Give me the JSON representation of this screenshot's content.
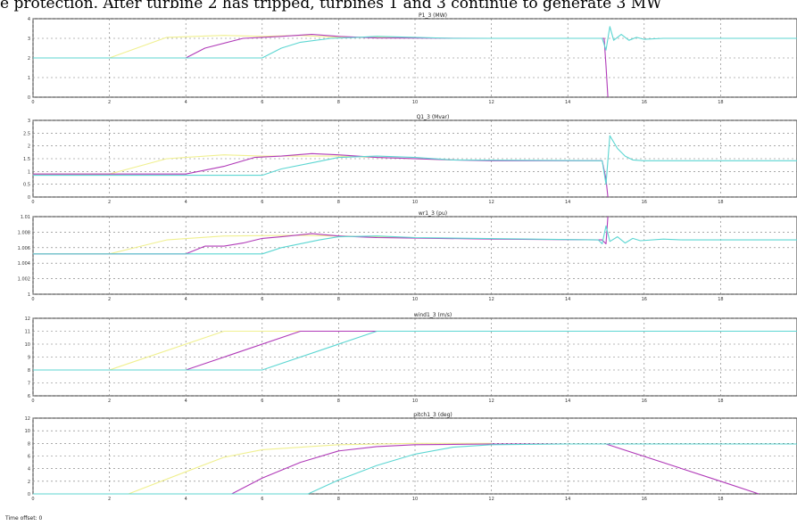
{
  "caption": "e protection. After turbine 2 has tripped, turbines 1 and 3 continue to generate 3 MW",
  "footer": "Time offset: 0",
  "colors": {
    "yellow": "#f0f090",
    "magenta": "#b03ab8",
    "cyan": "#5cd6d2"
  },
  "chart_data": [
    {
      "type": "line",
      "title": "P1_3 (MW)",
      "xlim": [
        0,
        20
      ],
      "ylim": [
        0,
        4
      ],
      "grid": true,
      "yticks": [
        0,
        1,
        2,
        3,
        4
      ],
      "x_ticks": [
        0,
        2,
        4,
        6,
        8,
        10,
        12,
        14,
        16,
        18
      ],
      "series": [
        {
          "color": "#f0f090",
          "points": [
            [
              0,
              2
            ],
            [
              2,
              2
            ],
            [
              3.5,
              3.05
            ],
            [
              5,
              3.15
            ],
            [
              6,
              3.1
            ],
            [
              7,
              3.15
            ],
            [
              8,
              3.05
            ],
            [
              9,
              3.05
            ],
            [
              10,
              3.05
            ]
          ]
        },
        {
          "color": "#b03ab8",
          "points": [
            [
              0,
              2
            ],
            [
              4,
              2
            ],
            [
              4.5,
              2.5
            ],
            [
              5.5,
              3.0
            ],
            [
              6,
              3.05
            ],
            [
              6.5,
              3.1
            ],
            [
              7.3,
              3.2
            ],
            [
              8,
              3.1
            ],
            [
              9,
              3.02
            ],
            [
              12,
              3.0
            ],
            [
              13,
              3.0
            ],
            [
              14.95,
              3.0
            ],
            [
              15,
              1.6
            ],
            [
              15.05,
              0
            ]
          ]
        },
        {
          "color": "#5cd6d2",
          "points": [
            [
              0,
              2
            ],
            [
              6,
              2
            ],
            [
              6.5,
              2.5
            ],
            [
              7,
              2.8
            ],
            [
              7.8,
              3.0
            ],
            [
              8.5,
              3.05
            ],
            [
              9,
              3.1
            ],
            [
              10,
              3.05
            ],
            [
              11,
              3.0
            ],
            [
              14.9,
              3.0
            ],
            [
              15,
              2.4
            ],
            [
              15.1,
              3.6
            ],
            [
              15.2,
              2.9
            ],
            [
              15.4,
              3.2
            ],
            [
              15.6,
              2.9
            ],
            [
              15.8,
              3.05
            ],
            [
              16,
              2.95
            ],
            [
              16.5,
              3.0
            ],
            [
              20,
              3.0
            ]
          ]
        }
      ]
    },
    {
      "type": "line",
      "title": "Q1_3 (Mvar)",
      "xlim": [
        0,
        20
      ],
      "ylim": [
        0,
        3
      ],
      "grid": true,
      "yticks": [
        0,
        0.5,
        1,
        1.5,
        2,
        2.5,
        3
      ],
      "x_ticks": [
        0,
        2,
        4,
        6,
        8,
        10,
        12,
        14,
        16,
        18
      ],
      "series": [
        {
          "color": "#f0f090",
          "points": [
            [
              0,
              0.9
            ],
            [
              2,
              0.9
            ],
            [
              3.5,
              1.5
            ],
            [
              5,
              1.65
            ],
            [
              6,
              1.6
            ],
            [
              8,
              1.6
            ],
            [
              10,
              1.5
            ],
            [
              11,
              1.45
            ]
          ]
        },
        {
          "color": "#b03ab8",
          "points": [
            [
              0,
              0.9
            ],
            [
              4,
              0.9
            ],
            [
              5,
              1.2
            ],
            [
              5.8,
              1.55
            ],
            [
              6.5,
              1.6
            ],
            [
              7.3,
              1.7
            ],
            [
              8,
              1.65
            ],
            [
              9,
              1.55
            ],
            [
              11,
              1.45
            ],
            [
              12,
              1.42
            ],
            [
              14.9,
              1.42
            ],
            [
              15,
              0.7
            ],
            [
              15.05,
              0
            ]
          ]
        },
        {
          "color": "#5cd6d2",
          "points": [
            [
              0,
              0.85
            ],
            [
              6,
              0.85
            ],
            [
              6.5,
              1.1
            ],
            [
              7.5,
              1.4
            ],
            [
              8,
              1.55
            ],
            [
              9,
              1.6
            ],
            [
              10,
              1.55
            ],
            [
              11,
              1.45
            ],
            [
              14.9,
              1.42
            ],
            [
              15,
              0.5
            ],
            [
              15.1,
              2.4
            ],
            [
              15.3,
              1.9
            ],
            [
              15.5,
              1.6
            ],
            [
              15.7,
              1.45
            ],
            [
              16,
              1.42
            ],
            [
              20,
              1.42
            ]
          ]
        }
      ]
    },
    {
      "type": "line",
      "title": "wr1_3 (pu)",
      "xlim": [
        0,
        20
      ],
      "ylim": [
        1.0,
        1.01
      ],
      "ylim_note": "exact axis range not readable; tick labels illegible",
      "grid": true,
      "yticks": [
        1.0,
        1.002,
        1.004,
        1.006,
        1.008,
        1.01
      ],
      "x_ticks": [
        0,
        2,
        4,
        6,
        8,
        10,
        12,
        14,
        16,
        18
      ],
      "series": [
        {
          "color": "#f0f090",
          "points": [
            [
              0,
              1.0052
            ],
            [
              2,
              1.0052
            ],
            [
              3.5,
              1.007
            ],
            [
              5,
              1.0075
            ],
            [
              7,
              1.0076
            ],
            [
              9,
              1.0074
            ],
            [
              10,
              1.0073
            ]
          ]
        },
        {
          "color": "#b03ab8",
          "points": [
            [
              0,
              1.0052
            ],
            [
              4,
              1.0052
            ],
            [
              4.5,
              1.0062
            ],
            [
              5,
              1.0062
            ],
            [
              5.5,
              1.0066
            ],
            [
              6,
              1.0072
            ],
            [
              6.5,
              1.0074
            ],
            [
              7.3,
              1.0078
            ],
            [
              8,
              1.0075
            ],
            [
              9,
              1.0073
            ],
            [
              12,
              1.0071
            ],
            [
              14.9,
              1.007
            ],
            [
              15,
              1.0065
            ],
            [
              15.05,
              1.01
            ]
          ]
        },
        {
          "color": "#5cd6d2",
          "points": [
            [
              0,
              1.0052
            ],
            [
              6,
              1.0052
            ],
            [
              6.5,
              1.006
            ],
            [
              7.5,
              1.007
            ],
            [
              8,
              1.0074
            ],
            [
              9,
              1.0075
            ],
            [
              10,
              1.0073
            ],
            [
              14.8,
              1.007
            ],
            [
              14.9,
              1.0065
            ],
            [
              15,
              1.0088
            ],
            [
              15.1,
              1.0068
            ],
            [
              15.3,
              1.0074
            ],
            [
              15.5,
              1.0066
            ],
            [
              15.7,
              1.0072
            ],
            [
              15.9,
              1.0069
            ],
            [
              16.5,
              1.0071
            ],
            [
              17,
              1.007
            ],
            [
              20,
              1.007
            ]
          ]
        }
      ]
    },
    {
      "type": "line",
      "title": "wind1_3 (m/s)",
      "xlim": [
        0,
        20
      ],
      "ylim": [
        6,
        12
      ],
      "grid": true,
      "yticks": [
        6,
        7,
        8,
        9,
        10,
        11,
        12
      ],
      "x_ticks": [
        0,
        2,
        4,
        6,
        8,
        10,
        12,
        14,
        16,
        18
      ],
      "series": [
        {
          "color": "#f0f090",
          "points": [
            [
              0,
              8
            ],
            [
              2,
              8
            ],
            [
              5,
              11
            ],
            [
              7.5,
              11
            ]
          ]
        },
        {
          "color": "#b03ab8",
          "points": [
            [
              0,
              8
            ],
            [
              4,
              8
            ],
            [
              7,
              11
            ],
            [
              9,
              11
            ]
          ]
        },
        {
          "color": "#5cd6d2",
          "points": [
            [
              0,
              8
            ],
            [
              6,
              8
            ],
            [
              9,
              11
            ],
            [
              20,
              11
            ]
          ]
        }
      ]
    },
    {
      "type": "line",
      "title": "pitch1_3 (deg)",
      "xlim": [
        0,
        20
      ],
      "ylim": [
        0,
        12
      ],
      "grid": true,
      "yticks": [
        0,
        2,
        4,
        6,
        8,
        10,
        12
      ],
      "x_ticks": [
        0,
        2,
        4,
        6,
        8,
        10,
        12,
        14,
        16,
        18
      ],
      "series": [
        {
          "color": "#f0f090",
          "points": [
            [
              0,
              0
            ],
            [
              2.5,
              0
            ],
            [
              4,
              3.5
            ],
            [
              5,
              5.8
            ],
            [
              6,
              7
            ],
            [
              8,
              7.8
            ],
            [
              10,
              8
            ],
            [
              12,
              8
            ]
          ]
        },
        {
          "color": "#b03ab8",
          "points": [
            [
              0,
              0
            ],
            [
              5.2,
              0
            ],
            [
              6,
              2.5
            ],
            [
              7,
              5
            ],
            [
              8,
              6.8
            ],
            [
              9,
              7.5
            ],
            [
              10,
              7.8
            ],
            [
              12,
              7.9
            ],
            [
              15,
              7.9
            ],
            [
              18,
              2
            ],
            [
              19,
              0
            ]
          ]
        },
        {
          "color": "#5cd6d2",
          "points": [
            [
              0,
              0
            ],
            [
              7.2,
              0
            ],
            [
              8,
              2.2
            ],
            [
              9,
              4.5
            ],
            [
              10,
              6.3
            ],
            [
              11,
              7.4
            ],
            [
              12,
              7.8
            ],
            [
              14,
              7.9
            ],
            [
              20,
              7.9
            ]
          ]
        }
      ]
    }
  ]
}
